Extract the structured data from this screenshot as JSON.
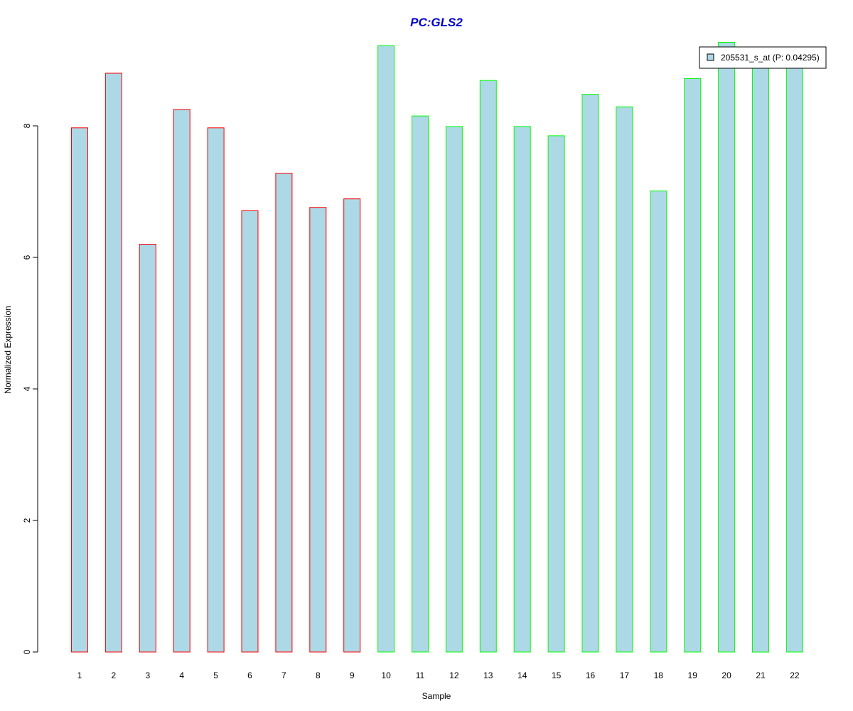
{
  "chart_data": {
    "type": "bar",
    "title": "PC:GLS2",
    "xlabel": "Sample",
    "ylabel": "Normalized Expression",
    "ylim": [
      0,
      9.3
    ],
    "yticks": [
      0,
      2,
      4,
      6,
      8
    ],
    "categories": [
      "1",
      "2",
      "3",
      "4",
      "5",
      "6",
      "7",
      "8",
      "9",
      "10",
      "11",
      "12",
      "13",
      "14",
      "15",
      "16",
      "17",
      "18",
      "19",
      "20",
      "21",
      "22"
    ],
    "series": [
      {
        "name": "205531_s_at (P: 0.04295)",
        "values": [
          7.97,
          8.8,
          6.2,
          8.25,
          7.97,
          6.71,
          7.28,
          6.76,
          6.89,
          9.22,
          8.15,
          7.99,
          8.69,
          7.99,
          7.85,
          8.48,
          8.29,
          7.01,
          8.72,
          9.27,
          9.1,
          9.05
        ],
        "fill": "#add8e6"
      }
    ],
    "groups": [
      {
        "border": "#ff0000",
        "samples": [
          "1",
          "2",
          "3",
          "4",
          "5",
          "6",
          "7",
          "8",
          "9"
        ]
      },
      {
        "border": "#00ff00",
        "samples": [
          "10",
          "11",
          "12",
          "13",
          "14",
          "15",
          "16",
          "17",
          "18",
          "19",
          "20",
          "21",
          "22"
        ]
      }
    ],
    "title_color": "#0000cd",
    "legend_position": "top-right",
    "grid": false
  }
}
